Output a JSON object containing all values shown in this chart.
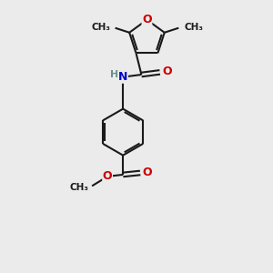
{
  "background_color": "#ebebeb",
  "bond_color": "#1a1a1a",
  "oxygen_color": "#cc0000",
  "nitrogen_color": "#0000cc",
  "hydrogen_color": "#6b8e8e",
  "line_width": 1.5,
  "font_size_atom": 9,
  "font_size_methyl": 8,
  "xlim": [
    0,
    6
  ],
  "ylim": [
    0,
    9
  ]
}
